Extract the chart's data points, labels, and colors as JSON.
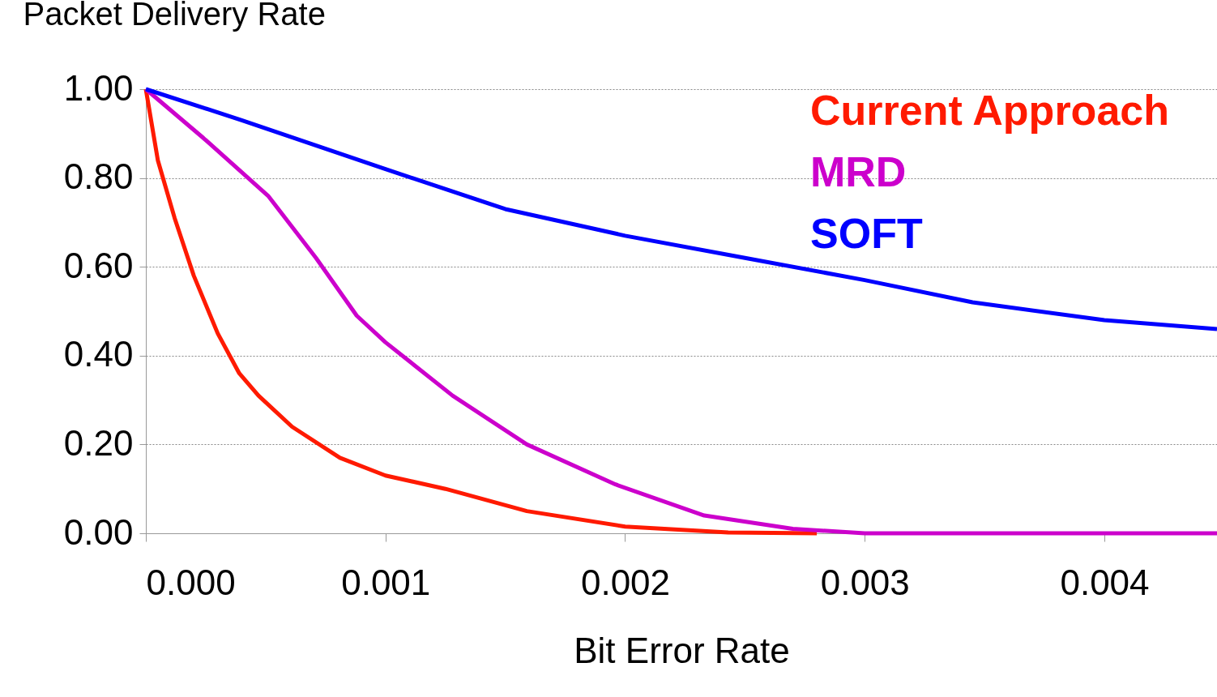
{
  "chart_data": {
    "type": "line",
    "xlabel": "Bit Error Rate",
    "ylabel": "Packet Delivery Rate",
    "xlim": [
      0,
      0.00447
    ],
    "ylim": [
      0,
      1
    ],
    "xticks": [
      {
        "value": 0,
        "label": "0.000"
      },
      {
        "value": 0.001,
        "label": "0.001"
      },
      {
        "value": 0.002,
        "label": "0.002"
      },
      {
        "value": 0.003,
        "label": "0.003"
      },
      {
        "value": 0.004,
        "label": "0.004"
      }
    ],
    "yticks": [
      {
        "value": 0,
        "label": "0.00"
      },
      {
        "value": 0.2,
        "label": "0.20"
      },
      {
        "value": 0.4,
        "label": "0.40"
      },
      {
        "value": 0.6,
        "label": "0.60"
      },
      {
        "value": 0.8,
        "label": "0.80"
      },
      {
        "value": 1,
        "label": "1.00"
      }
    ],
    "grid": "y",
    "legend": "top right",
    "marker": "none",
    "line_style": "solid",
    "series": [
      {
        "name": "Current Approach",
        "color": "#ff1a00",
        "x": [
          0,
          5e-05,
          0.00012,
          0.0002,
          0.0003,
          0.00039,
          0.00047,
          0.00061,
          0.00081,
          0.001,
          0.00125,
          0.00159,
          0.002,
          0.00243,
          0.0028
        ],
        "values": [
          1.0,
          0.84,
          0.71,
          0.58,
          0.45,
          0.36,
          0.31,
          0.24,
          0.17,
          0.13,
          0.1,
          0.05,
          0.015,
          0.002,
          0
        ]
      },
      {
        "name": "MRD",
        "color": "#cc00cc",
        "x": [
          0,
          0.00024,
          0.00051,
          0.00071,
          0.00088,
          0.001,
          0.00128,
          0.00159,
          0.00196,
          0.00233,
          0.0027,
          0.003,
          0.00447
        ],
        "values": [
          1.0,
          0.89,
          0.76,
          0.62,
          0.49,
          0.43,
          0.31,
          0.2,
          0.11,
          0.04,
          0.01,
          0,
          0
        ]
      },
      {
        "name": "SOFT",
        "color": "#0000ff",
        "x": [
          0,
          0.0004,
          0.001,
          0.0015,
          0.002,
          0.0025,
          0.003,
          0.00345,
          0.004,
          0.00447
        ],
        "values": [
          1.0,
          0.93,
          0.82,
          0.73,
          0.67,
          0.62,
          0.57,
          0.52,
          0.48,
          0.46
        ]
      }
    ]
  }
}
